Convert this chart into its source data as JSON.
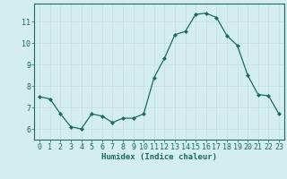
{
  "x": [
    0,
    1,
    2,
    3,
    4,
    5,
    6,
    7,
    8,
    9,
    10,
    11,
    12,
    13,
    14,
    15,
    16,
    17,
    18,
    19,
    20,
    21,
    22,
    23
  ],
  "y": [
    7.5,
    7.4,
    6.7,
    6.1,
    6.0,
    6.7,
    6.6,
    6.3,
    6.5,
    6.5,
    6.7,
    8.4,
    9.3,
    10.4,
    10.55,
    11.35,
    11.4,
    11.2,
    10.35,
    9.9,
    8.5,
    7.6,
    7.55,
    6.7
  ],
  "xlabel": "Humidex (Indice chaleur)",
  "xlim": [
    -0.5,
    23.5
  ],
  "ylim": [
    5.5,
    11.85
  ],
  "yticks": [
    6,
    7,
    8,
    9,
    10,
    11
  ],
  "xticks": [
    0,
    1,
    2,
    3,
    4,
    5,
    6,
    7,
    8,
    9,
    10,
    11,
    12,
    13,
    14,
    15,
    16,
    17,
    18,
    19,
    20,
    21,
    22,
    23
  ],
  "line_color": "#1a6b5a",
  "marker_color": "#1a6b5a",
  "bg_color": "#d4eeee",
  "grid_major_color": "#c8dede",
  "grid_minor_color": "#c8dede",
  "xlabel_fontsize": 6.5,
  "tick_fontsize": 6.0
}
